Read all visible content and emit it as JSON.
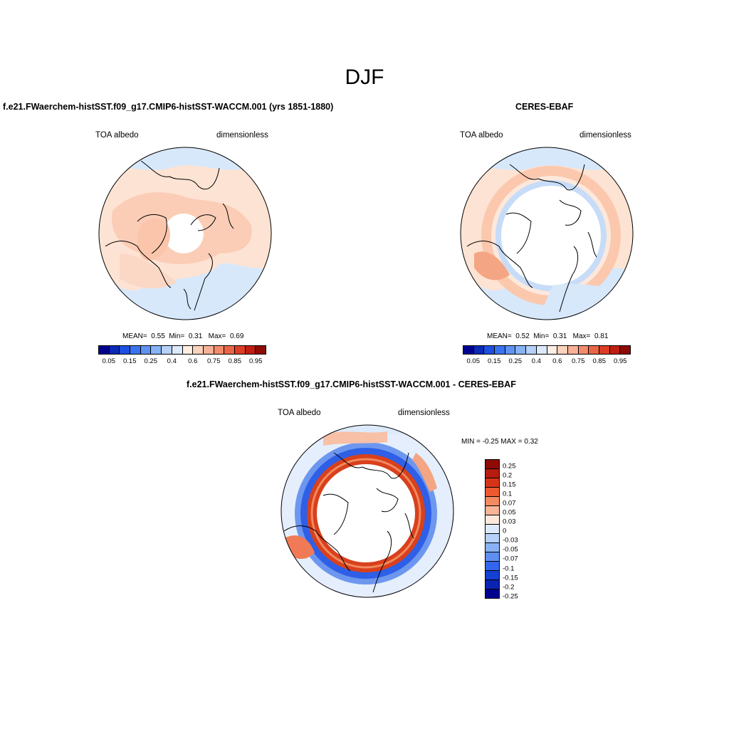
{
  "season": "DJF",
  "colors": {
    "seq": [
      "#00008f",
      "#0b2ab6",
      "#1d4fe0",
      "#3a73ef",
      "#5e93f2",
      "#86b3f5",
      "#b6d1f8",
      "#dbe9fb",
      "#fdeee4",
      "#fbd2bc",
      "#f8b197",
      "#f38c6d",
      "#ea6545",
      "#dc3d24",
      "#c11e12",
      "#8e0b06"
    ],
    "div": [
      "#8e0b06",
      "#b51c10",
      "#d63419",
      "#ed5a2f",
      "#f38a62",
      "#f8b497",
      "#fde9dc",
      "#dceafb",
      "#b6d1f8",
      "#88b2f5",
      "#5e8ff1",
      "#3366ec",
      "#1440d3",
      "#0a23b0",
      "#00008f"
    ]
  },
  "panels": {
    "model": {
      "title": "f.e21.FWaerchem-histSST.f09_g17.CMIP6-histSST-WACCM.001 (yrs 1851-1880)",
      "variable": "TOA albedo",
      "units": "dimensionless",
      "mean_label": "MEAN=",
      "mean": "0.55",
      "min_label": "Min=",
      "min": "0.31",
      "max_label": "Max=",
      "max": "0.69",
      "ticks": [
        "0.05",
        "0.15",
        "0.25",
        "0.4",
        "0.6",
        "0.75",
        "0.85",
        "0.95"
      ]
    },
    "obs": {
      "title": "CERES-EBAF",
      "variable": "TOA albedo",
      "units": "dimensionless",
      "mean_label": "MEAN=",
      "mean": "0.52",
      "min_label": "Min=",
      "min": "0.31",
      "max_label": "Max=",
      "max": "0.81",
      "ticks": [
        "0.05",
        "0.15",
        "0.25",
        "0.4",
        "0.6",
        "0.75",
        "0.85",
        "0.95"
      ]
    },
    "diff": {
      "title": "f.e21.FWaerchem-histSST.f09_g17.CMIP6-histSST-WACCM.001 - CERES-EBAF",
      "variable": "TOA albedo",
      "units": "dimensionless",
      "minmax_text": "MIN =  -0.25 MAX =   0.32",
      "ticks": [
        "0.25",
        "0.2",
        "0.15",
        "0.1",
        "0.07",
        "0.05",
        "0.03",
        "0",
        "-0.03",
        "-0.05",
        "-0.07",
        "-0.1",
        "-0.15",
        "-0.2",
        "-0.25"
      ]
    }
  }
}
